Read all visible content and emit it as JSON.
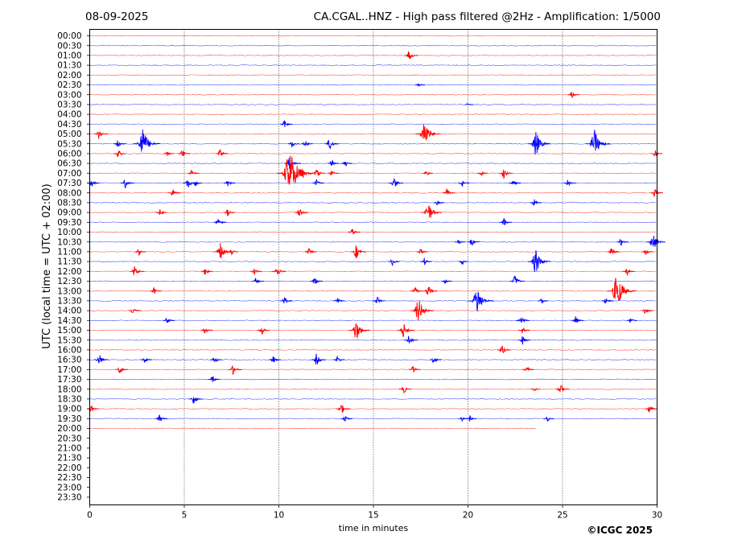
{
  "chart_data": {
    "type": "line",
    "date_label": "08-09-2025",
    "title": "CA.CGAL..HNZ - High pass filtered @2Hz - Amplification: 1/5000",
    "xlabel": "time in minutes",
    "ylabel": "UTC (local time = UTC + 02:00)",
    "copyright": "©ICGC 2025",
    "xlim": [
      0,
      30
    ],
    "x_ticks": [
      0,
      5,
      10,
      15,
      20,
      25,
      30
    ],
    "vertical_gridlines": [
      5,
      10,
      15,
      20,
      25
    ],
    "grid": true,
    "trace_colors": [
      "#ff0000",
      "#0000ff"
    ],
    "rows": [
      "00:00",
      "00:30",
      "01:00",
      "01:30",
      "02:00",
      "02:30",
      "03:00",
      "03:30",
      "04:00",
      "04:30",
      "05:00",
      "05:30",
      "06:00",
      "06:30",
      "07:00",
      "07:30",
      "08:00",
      "08:30",
      "09:00",
      "09:30",
      "10:00",
      "10:30",
      "11:00",
      "11:30",
      "12:00",
      "12:30",
      "13:00",
      "13:30",
      "14:00",
      "14:30",
      "15:00",
      "15:30",
      "16:00",
      "16:30",
      "17:00",
      "17:30",
      "18:00",
      "18:30",
      "19:00",
      "19:30",
      "20:00",
      "20:30",
      "21:00",
      "21:30",
      "22:00",
      "22:30",
      "23:00",
      "23:30"
    ],
    "last_row_end_minute": 23.6,
    "events": [
      {
        "row": "01:00",
        "minute": 16.9,
        "amp": 7
      },
      {
        "row": "02:30",
        "minute": 17.4,
        "amp": 3
      },
      {
        "row": "03:00",
        "minute": 25.5,
        "amp": 5
      },
      {
        "row": "03:30",
        "minute": 20.0,
        "amp": 2
      },
      {
        "row": "04:30",
        "minute": 10.3,
        "amp": 6
      },
      {
        "row": "05:00",
        "minute": 0.5,
        "amp": 7
      },
      {
        "row": "05:00",
        "minute": 17.7,
        "amp": 18
      },
      {
        "row": "05:30",
        "minute": 1.5,
        "amp": 6
      },
      {
        "row": "05:30",
        "minute": 2.8,
        "amp": 20
      },
      {
        "row": "05:30",
        "minute": 10.7,
        "amp": 5
      },
      {
        "row": "05:30",
        "minute": 11.4,
        "amp": 5
      },
      {
        "row": "05:30",
        "minute": 12.7,
        "amp": 8
      },
      {
        "row": "05:30",
        "minute": 23.6,
        "amp": 16
      },
      {
        "row": "05:30",
        "minute": 26.7,
        "amp": 18
      },
      {
        "row": "06:00",
        "minute": 1.5,
        "amp": 6
      },
      {
        "row": "06:00",
        "minute": 4.1,
        "amp": 4
      },
      {
        "row": "06:00",
        "minute": 4.9,
        "amp": 6
      },
      {
        "row": "06:00",
        "minute": 6.9,
        "amp": 6
      },
      {
        "row": "06:00",
        "minute": 29.9,
        "amp": 5
      },
      {
        "row": "06:30",
        "minute": 10.6,
        "amp": 10
      },
      {
        "row": "06:30",
        "minute": 12.8,
        "amp": 5
      },
      {
        "row": "06:30",
        "minute": 13.5,
        "amp": 5
      },
      {
        "row": "07:00",
        "minute": 5.4,
        "amp": 5
      },
      {
        "row": "07:00",
        "minute": 10.6,
        "amp": 30
      },
      {
        "row": "07:00",
        "minute": 11.2,
        "amp": 10
      },
      {
        "row": "07:00",
        "minute": 12.0,
        "amp": 7
      },
      {
        "row": "07:00",
        "minute": 12.8,
        "amp": 5
      },
      {
        "row": "07:00",
        "minute": 17.8,
        "amp": 4
      },
      {
        "row": "07:00",
        "minute": 20.7,
        "amp": 4
      },
      {
        "row": "07:00",
        "minute": 21.9,
        "amp": 7
      },
      {
        "row": "07:30",
        "minute": 0.1,
        "amp": 6
      },
      {
        "row": "07:30",
        "minute": 1.9,
        "amp": 7
      },
      {
        "row": "07:30",
        "minute": 5.2,
        "amp": 7
      },
      {
        "row": "07:30",
        "minute": 5.6,
        "amp": 4
      },
      {
        "row": "07:30",
        "minute": 7.3,
        "amp": 5
      },
      {
        "row": "07:30",
        "minute": 12.0,
        "amp": 5
      },
      {
        "row": "07:30",
        "minute": 16.1,
        "amp": 8
      },
      {
        "row": "07:30",
        "minute": 19.7,
        "amp": 5
      },
      {
        "row": "07:30",
        "minute": 22.4,
        "amp": 5
      },
      {
        "row": "07:30",
        "minute": 25.3,
        "amp": 5
      },
      {
        "row": "08:00",
        "minute": 4.4,
        "amp": 6
      },
      {
        "row": "08:00",
        "minute": 18.9,
        "amp": 6
      },
      {
        "row": "08:00",
        "minute": 29.9,
        "amp": 6
      },
      {
        "row": "08:30",
        "minute": 18.4,
        "amp": 4
      },
      {
        "row": "08:30",
        "minute": 23.5,
        "amp": 5
      },
      {
        "row": "09:00",
        "minute": 3.7,
        "amp": 5
      },
      {
        "row": "09:00",
        "minute": 7.3,
        "amp": 5
      },
      {
        "row": "09:00",
        "minute": 11.1,
        "amp": 7
      },
      {
        "row": "09:00",
        "minute": 17.9,
        "amp": 14
      },
      {
        "row": "09:30",
        "minute": 6.8,
        "amp": 6
      },
      {
        "row": "09:30",
        "minute": 21.9,
        "amp": 6
      },
      {
        "row": "10:00",
        "minute": 13.9,
        "amp": 6
      },
      {
        "row": "10:30",
        "minute": 19.5,
        "amp": 4
      },
      {
        "row": "10:30",
        "minute": 20.2,
        "amp": 6
      },
      {
        "row": "10:30",
        "minute": 28.1,
        "amp": 5
      },
      {
        "row": "10:30",
        "minute": 29.8,
        "amp": 12
      },
      {
        "row": "11:00",
        "minute": 2.6,
        "amp": 5
      },
      {
        "row": "11:00",
        "minute": 6.9,
        "amp": 12
      },
      {
        "row": "11:00",
        "minute": 7.5,
        "amp": 4
      },
      {
        "row": "11:00",
        "minute": 11.6,
        "amp": 5
      },
      {
        "row": "11:00",
        "minute": 14.1,
        "amp": 9
      },
      {
        "row": "11:00",
        "minute": 17.5,
        "amp": 5
      },
      {
        "row": "11:00",
        "minute": 27.6,
        "amp": 6
      },
      {
        "row": "11:00",
        "minute": 29.4,
        "amp": 5
      },
      {
        "row": "11:30",
        "minute": 16.0,
        "amp": 5
      },
      {
        "row": "11:30",
        "minute": 17.7,
        "amp": 5
      },
      {
        "row": "11:30",
        "minute": 19.7,
        "amp": 4
      },
      {
        "row": "11:30",
        "minute": 23.6,
        "amp": 16
      },
      {
        "row": "12:00",
        "minute": 2.4,
        "amp": 8
      },
      {
        "row": "12:00",
        "minute": 6.1,
        "amp": 5
      },
      {
        "row": "12:00",
        "minute": 8.7,
        "amp": 5
      },
      {
        "row": "12:00",
        "minute": 9.9,
        "amp": 8
      },
      {
        "row": "12:00",
        "minute": 28.4,
        "amp": 6
      },
      {
        "row": "12:30",
        "minute": 8.8,
        "amp": 5
      },
      {
        "row": "12:30",
        "minute": 11.9,
        "amp": 6
      },
      {
        "row": "12:30",
        "minute": 18.8,
        "amp": 4
      },
      {
        "row": "12:30",
        "minute": 22.5,
        "amp": 8
      },
      {
        "row": "13:00",
        "minute": 3.4,
        "amp": 5
      },
      {
        "row": "13:00",
        "minute": 17.2,
        "amp": 6
      },
      {
        "row": "13:00",
        "minute": 17.9,
        "amp": 8
      },
      {
        "row": "13:00",
        "minute": 27.9,
        "amp": 22
      },
      {
        "row": "13:30",
        "minute": 10.3,
        "amp": 6
      },
      {
        "row": "13:30",
        "minute": 13.1,
        "amp": 5
      },
      {
        "row": "13:30",
        "minute": 15.2,
        "amp": 6
      },
      {
        "row": "13:30",
        "minute": 20.5,
        "amp": 18
      },
      {
        "row": "13:30",
        "minute": 23.9,
        "amp": 4
      },
      {
        "row": "13:30",
        "minute": 27.3,
        "amp": 5
      },
      {
        "row": "14:00",
        "minute": 2.3,
        "amp": 6
      },
      {
        "row": "14:00",
        "minute": 17.4,
        "amp": 16
      },
      {
        "row": "14:00",
        "minute": 29.4,
        "amp": 5
      },
      {
        "row": "14:30",
        "minute": 4.1,
        "amp": 5
      },
      {
        "row": "14:30",
        "minute": 22.8,
        "amp": 7
      },
      {
        "row": "14:30",
        "minute": 25.7,
        "amp": 6
      },
      {
        "row": "14:30",
        "minute": 28.6,
        "amp": 4
      },
      {
        "row": "15:00",
        "minute": 6.1,
        "amp": 5
      },
      {
        "row": "15:00",
        "minute": 9.1,
        "amp": 6
      },
      {
        "row": "15:00",
        "minute": 14.1,
        "amp": 14
      },
      {
        "row": "15:00",
        "minute": 16.6,
        "amp": 10
      },
      {
        "row": "15:00",
        "minute": 22.9,
        "amp": 5
      },
      {
        "row": "15:30",
        "minute": 16.9,
        "amp": 7
      },
      {
        "row": "15:30",
        "minute": 22.9,
        "amp": 6
      },
      {
        "row": "16:00",
        "minute": 21.8,
        "amp": 7
      },
      {
        "row": "16:30",
        "minute": 0.5,
        "amp": 8
      },
      {
        "row": "16:30",
        "minute": 2.9,
        "amp": 5
      },
      {
        "row": "16:30",
        "minute": 6.6,
        "amp": 5
      },
      {
        "row": "16:30",
        "minute": 9.7,
        "amp": 6
      },
      {
        "row": "16:30",
        "minute": 12.0,
        "amp": 8
      },
      {
        "row": "16:30",
        "minute": 13.1,
        "amp": 5
      },
      {
        "row": "16:30",
        "minute": 18.2,
        "amp": 5
      },
      {
        "row": "17:00",
        "minute": 1.6,
        "amp": 6
      },
      {
        "row": "17:00",
        "minute": 7.6,
        "amp": 7
      },
      {
        "row": "17:00",
        "minute": 17.1,
        "amp": 5
      },
      {
        "row": "17:00",
        "minute": 23.1,
        "amp": 5
      },
      {
        "row": "17:30",
        "minute": 6.5,
        "amp": 5
      },
      {
        "row": "18:00",
        "minute": 16.6,
        "amp": 6
      },
      {
        "row": "18:00",
        "minute": 23.5,
        "amp": 3
      },
      {
        "row": "18:00",
        "minute": 24.9,
        "amp": 7
      },
      {
        "row": "18:30",
        "minute": 5.5,
        "amp": 7
      },
      {
        "row": "19:00",
        "minute": 0.1,
        "amp": 5
      },
      {
        "row": "19:00",
        "minute": 13.3,
        "amp": 8
      },
      {
        "row": "19:00",
        "minute": 29.6,
        "amp": 6
      },
      {
        "row": "19:30",
        "minute": 3.7,
        "amp": 6
      },
      {
        "row": "19:30",
        "minute": 13.5,
        "amp": 5
      },
      {
        "row": "19:30",
        "minute": 19.7,
        "amp": 4
      },
      {
        "row": "19:30",
        "minute": 20.1,
        "amp": 4
      },
      {
        "row": "19:30",
        "minute": 24.2,
        "amp": 4
      }
    ]
  }
}
